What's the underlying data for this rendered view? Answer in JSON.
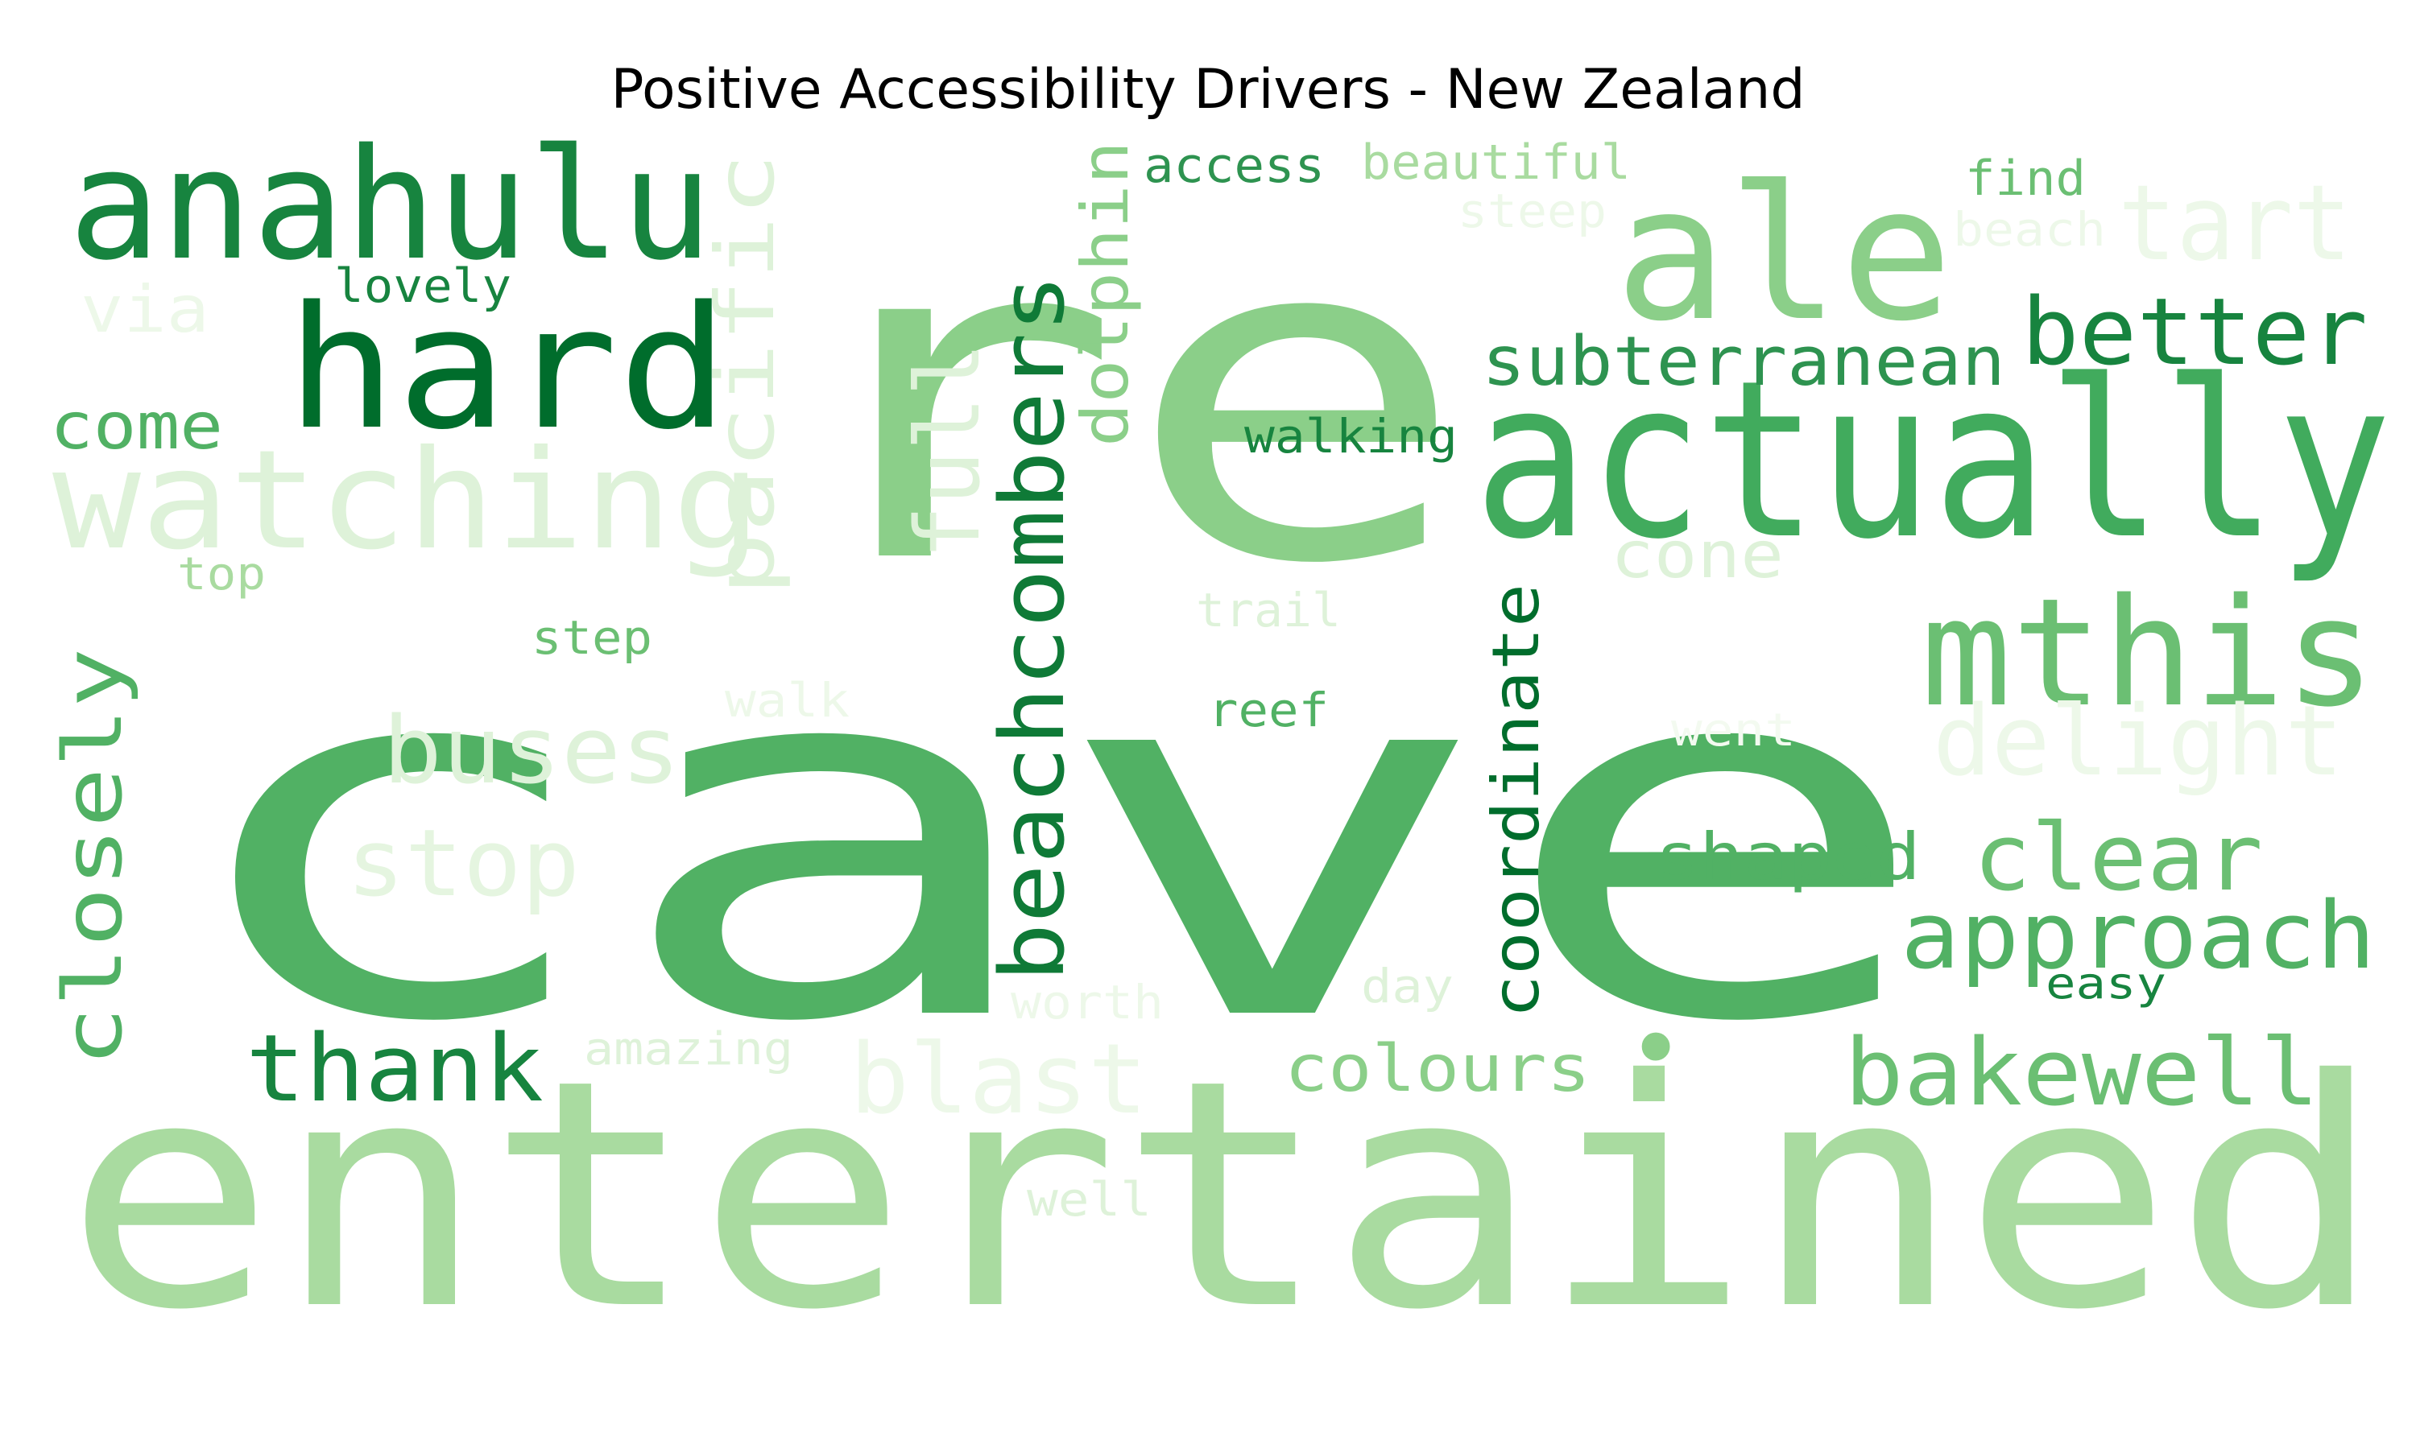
{
  "title": "Positive Accessibility Drivers - New Zealand",
  "palette": {
    "darkest": "#006d2c",
    "dark": "#17843f",
    "medium": "#41ab5d",
    "bright": "#51b164",
    "light": "#8bcf89",
    "lighter": "#a9dba0",
    "pale": "#c7e9c0",
    "paler": "#def2d9",
    "palest": "#edf8e9"
  },
  "words": [
    {
      "text": "cave",
      "color": "#51b164"
    },
    {
      "text": "re",
      "color": "#8bcf89"
    },
    {
      "text": "entertained",
      "color": "#a9dba0"
    },
    {
      "text": "actually",
      "color": "#41ab5d"
    },
    {
      "text": "anahulu",
      "color": "#17843f"
    },
    {
      "text": "hard",
      "color": "#006d2c"
    },
    {
      "text": "ale",
      "color": "#8bcf89"
    },
    {
      "text": "watching",
      "color": "#def2d9"
    },
    {
      "text": "mthis",
      "color": "#6bbf73"
    },
    {
      "text": "beachcombers",
      "color": "#0f7a37"
    },
    {
      "text": "better",
      "color": "#17843f"
    },
    {
      "text": "approach",
      "color": "#51b164"
    },
    {
      "text": "delight",
      "color": "#edf8e9"
    },
    {
      "text": "clear",
      "color": "#6bbf73"
    },
    {
      "text": "bakewell",
      "color": "#6bbf73"
    },
    {
      "text": "pacific",
      "color": "#def2d9"
    },
    {
      "text": "closely",
      "color": "#51b164"
    },
    {
      "text": "buses",
      "color": "#def2d9"
    },
    {
      "text": "stop",
      "color": "#e5f5e0"
    },
    {
      "text": "thank",
      "color": "#17843f"
    },
    {
      "text": "full",
      "color": "#def2d9"
    },
    {
      "text": "tart",
      "color": "#edf8e9"
    },
    {
      "text": "subterranean",
      "color": "#2e9350"
    },
    {
      "text": "coordinate",
      "color": "#006d2c"
    },
    {
      "text": "dolphin",
      "color": "#8bcf89"
    },
    {
      "text": "blast",
      "color": "#edf8e9"
    },
    {
      "text": "shaped",
      "color": "#51b164"
    },
    {
      "text": "colours",
      "color": "#8bcf89"
    },
    {
      "text": "cone",
      "color": "#def2d9"
    },
    {
      "text": "come",
      "color": "#51b164"
    },
    {
      "text": "via",
      "color": "#edf8e9"
    },
    {
      "text": "walking",
      "color": "#17843f"
    },
    {
      "text": "access",
      "color": "#2e9350"
    },
    {
      "text": "beautiful",
      "color": "#a9dba0"
    },
    {
      "text": "steep",
      "color": "#edf8e9"
    },
    {
      "text": "find",
      "color": "#6bbf73"
    },
    {
      "text": "beach",
      "color": "#edf8e9"
    },
    {
      "text": "lovely",
      "color": "#17843f"
    },
    {
      "text": "top",
      "color": "#a9dba0"
    },
    {
      "text": "step",
      "color": "#6bbf73"
    },
    {
      "text": "walk",
      "color": "#edf8e9"
    },
    {
      "text": "trail",
      "color": "#def2d9"
    },
    {
      "text": "reef",
      "color": "#51b164"
    },
    {
      "text": "went",
      "color": "#f3faf0"
    },
    {
      "text": "worth",
      "color": "#edf8e9"
    },
    {
      "text": "day",
      "color": "#def2d9"
    },
    {
      "text": "easy",
      "color": "#17843f"
    },
    {
      "text": "amazing",
      "color": "#def2d9"
    },
    {
      "text": "well",
      "color": "#def2d9"
    },
    {
      "text": "•",
      "color": "#8bcf89"
    }
  ]
}
